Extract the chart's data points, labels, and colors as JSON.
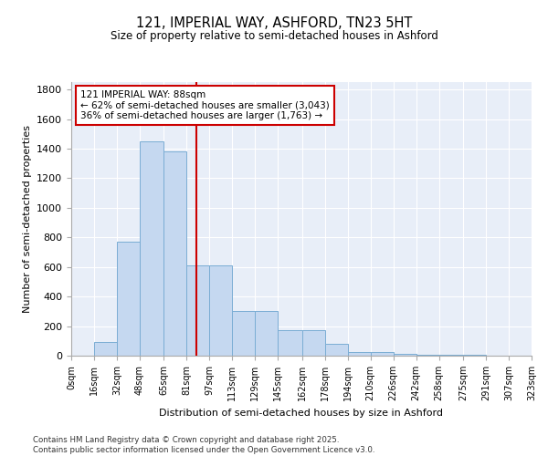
{
  "title1": "121, IMPERIAL WAY, ASHFORD, TN23 5HT",
  "title2": "Size of property relative to semi-detached houses in Ashford",
  "xlabel": "Distribution of semi-detached houses by size in Ashford",
  "ylabel": "Number of semi-detached properties",
  "bin_edges": [
    0,
    16,
    32,
    48,
    65,
    81,
    97,
    113,
    129,
    145,
    162,
    178,
    194,
    210,
    226,
    242,
    258,
    275,
    291,
    307,
    323
  ],
  "bar_heights": [
    3,
    95,
    770,
    1450,
    1380,
    610,
    610,
    300,
    300,
    170,
    170,
    80,
    25,
    25,
    10,
    5,
    5,
    5,
    3,
    3
  ],
  "bar_color": "#c5d8f0",
  "bar_edge_color": "#7aadd4",
  "property_size": 88,
  "property_line_color": "#cc0000",
  "annotation_text": "121 IMPERIAL WAY: 88sqm\n← 62% of semi-detached houses are smaller (3,043)\n36% of semi-detached houses are larger (1,763) →",
  "annotation_box_color": "#cc0000",
  "ylim": [
    0,
    1850
  ],
  "yticks": [
    0,
    200,
    400,
    600,
    800,
    1000,
    1200,
    1400,
    1600,
    1800
  ],
  "bg_color": "#e8eef8",
  "footer_text": "Contains HM Land Registry data © Crown copyright and database right 2025.\nContains public sector information licensed under the Open Government Licence v3.0."
}
